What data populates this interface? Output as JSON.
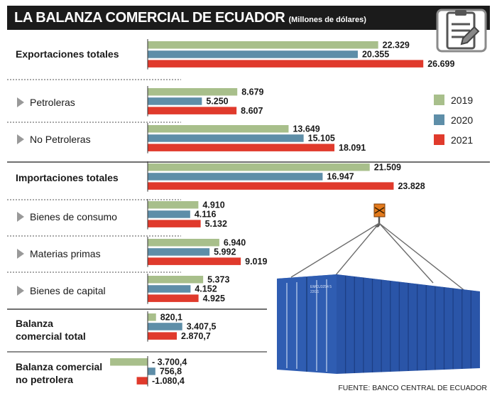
{
  "title": "LA BALANZA COMERCIAL DE ECUADOR",
  "subtitle": "(Millones de dólares)",
  "source": "FUENTE: BANCO CENTRAL DE ECUADOR",
  "colors": {
    "2019": "#a8bf8b",
    "2020": "#5e8ea8",
    "2021": "#e03a2c"
  },
  "chart_data": {
    "type": "bar",
    "orientation": "horizontal",
    "title": "LA BALANZA COMERCIAL DE ECUADOR",
    "subtitle": "(Millones de dólares)",
    "legend": [
      "2019",
      "2020",
      "2021"
    ],
    "legend_placement": "right",
    "categories": [
      "Exportaciones totales",
      "Petroleras",
      "No Petroleras",
      "Importaciones totales",
      "Bienes de consumo",
      "Materias primas",
      "Bienes de capital",
      "Balanza comercial total",
      "Balanza comercial no petrolera"
    ],
    "series": [
      {
        "name": "2019",
        "values": [
          22329,
          8679,
          13649,
          21509,
          4910,
          6940,
          5373,
          820.1,
          -3700.4
        ],
        "labels": [
          "22.329",
          "8.679",
          "13.649",
          "21.509",
          "4.910",
          "6.940",
          "5.373",
          "820,1",
          "- 3.700,4"
        ]
      },
      {
        "name": "2020",
        "values": [
          20355,
          5250,
          15105,
          16947,
          4116,
          5992,
          4152,
          3407.5,
          756.8
        ],
        "labels": [
          "20.355",
          "5.250",
          "15.105",
          "16.947",
          "4.116",
          "5.992",
          "4.152",
          "3.407,5",
          "756,8"
        ]
      },
      {
        "name": "2021",
        "values": [
          26699,
          8607,
          18091,
          23828,
          5132,
          9019,
          4925,
          2870.7,
          -1080.4
        ],
        "labels": [
          "26.699",
          "8.607",
          "18.091",
          "23.828",
          "5.132",
          "9.019",
          "4.925",
          "2.870,7",
          "-1.080,4"
        ]
      }
    ]
  },
  "container": {
    "code1": "EMCU3254 5",
    "code2": "22G1"
  }
}
